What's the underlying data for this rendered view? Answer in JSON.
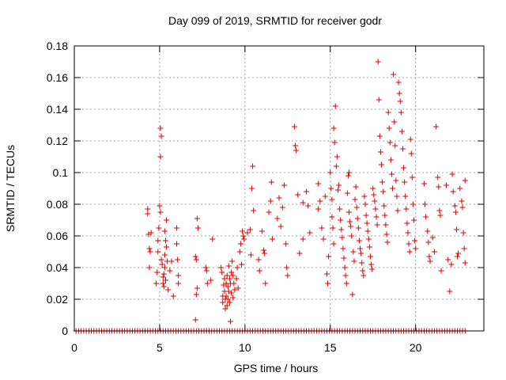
{
  "chart_data": {
    "type": "scatter",
    "title": "Day 099 of 2019, SRMTID for receiver godr",
    "xlabel": "GPS time / hours",
    "ylabel": "SRMTID / TECUs",
    "xlim": [
      0,
      24
    ],
    "ylim": [
      0,
      0.18
    ],
    "x_ticks": [
      0,
      5,
      10,
      15,
      20
    ],
    "x_tick_labels": [
      "0",
      "5",
      "10",
      "15",
      "20"
    ],
    "y_ticks": [
      0,
      0.02,
      0.04,
      0.06,
      0.08,
      0.1,
      0.12,
      0.14,
      0.16,
      0.18
    ],
    "y_tick_labels": [
      "0",
      "0.02",
      "0.04",
      "0.06",
      "0.08",
      "0.1",
      "0.12",
      "0.14",
      "0.16",
      "0.18"
    ],
    "grid": true,
    "marker": "+",
    "series": [
      {
        "name": "SRMTID",
        "color": "#dd0000",
        "points": [
          [
            4.3,
            0.077
          ],
          [
            4.3,
            0.074
          ],
          [
            4.35,
            0.061
          ],
          [
            4.4,
            0.052
          ],
          [
            4.45,
            0.05
          ],
          [
            4.4,
            0.04
          ],
          [
            4.5,
            0.062
          ],
          [
            4.8,
            0.03
          ],
          [
            4.85,
            0.037
          ],
          [
            4.9,
            0.05
          ],
          [
            4.9,
            0.057
          ],
          [
            4.95,
            0.065
          ],
          [
            5.0,
            0.079
          ],
          [
            5.05,
            0.075
          ],
          [
            5.05,
            0.128
          ],
          [
            5.1,
            0.123
          ],
          [
            5.05,
            0.11
          ],
          [
            5.1,
            0.045
          ],
          [
            5.15,
            0.042
          ],
          [
            5.2,
            0.034
          ],
          [
            5.2,
            0.03
          ],
          [
            5.25,
            0.036
          ],
          [
            5.3,
            0.04
          ],
          [
            5.3,
            0.048
          ],
          [
            5.35,
            0.057
          ],
          [
            5.3,
            0.063
          ],
          [
            5.4,
            0.07
          ],
          [
            5.4,
            0.053
          ],
          [
            5.45,
            0.044
          ],
          [
            5.35,
            0.032
          ],
          [
            5.25,
            0.028
          ],
          [
            5.5,
            0.026
          ],
          [
            5.6,
            0.038
          ],
          [
            5.7,
            0.044
          ],
          [
            5.8,
            0.022
          ],
          [
            6.0,
            0.065
          ],
          [
            6.0,
            0.055
          ],
          [
            6.05,
            0.045
          ],
          [
            6.1,
            0.035
          ],
          [
            6.1,
            0.03
          ],
          [
            7.2,
            0.071
          ],
          [
            7.25,
            0.065
          ],
          [
            7.1,
            0.047
          ],
          [
            7.15,
            0.045
          ],
          [
            7.2,
            0.027
          ],
          [
            7.15,
            0.023
          ],
          [
            7.1,
            0.007
          ],
          [
            7.7,
            0.04
          ],
          [
            7.75,
            0.038
          ],
          [
            7.8,
            0.03
          ],
          [
            8.1,
            0.058
          ],
          [
            8.0,
            0.032
          ],
          [
            8.6,
            0.04
          ],
          [
            8.65,
            0.037
          ],
          [
            8.7,
            0.022
          ],
          [
            8.7,
            0.018
          ],
          [
            8.75,
            0.029
          ],
          [
            8.8,
            0.033
          ],
          [
            8.8,
            0.025
          ],
          [
            8.85,
            0.02
          ],
          [
            8.85,
            0.014
          ],
          [
            8.9,
            0.03
          ],
          [
            8.9,
            0.022
          ],
          [
            8.95,
            0.016
          ],
          [
            8.95,
            0.035
          ],
          [
            9.0,
            0.028
          ],
          [
            9.0,
            0.02
          ],
          [
            9.05,
            0.025
          ],
          [
            9.05,
            0.041
          ],
          [
            9.1,
            0.033
          ],
          [
            9.1,
            0.018
          ],
          [
            9.15,
            0.006
          ],
          [
            9.15,
            0.03
          ],
          [
            9.2,
            0.024
          ],
          [
            9.2,
            0.037
          ],
          [
            9.25,
            0.044
          ],
          [
            9.3,
            0.035
          ],
          [
            9.3,
            0.021
          ],
          [
            9.35,
            0.03
          ],
          [
            9.4,
            0.026
          ],
          [
            9.55,
            0.04
          ],
          [
            9.5,
            0.033
          ],
          [
            9.6,
            0.027
          ],
          [
            9.7,
            0.05
          ],
          [
            9.75,
            0.055
          ],
          [
            9.8,
            0.042
          ],
          [
            9.85,
            0.063
          ],
          [
            9.9,
            0.06
          ],
          [
            9.95,
            0.058
          ],
          [
            10.15,
            0.062
          ],
          [
            10.3,
            0.064
          ],
          [
            10.4,
            0.09
          ],
          [
            10.45,
            0.104
          ],
          [
            10.5,
            0.076
          ],
          [
            10.35,
            0.048
          ],
          [
            10.8,
            0.045
          ],
          [
            10.85,
            0.038
          ],
          [
            11.0,
            0.063
          ],
          [
            11.1,
            0.051
          ],
          [
            11.15,
            0.049
          ],
          [
            11.2,
            0.03
          ],
          [
            11.4,
            0.075
          ],
          [
            11.5,
            0.082
          ],
          [
            11.55,
            0.094
          ],
          [
            11.6,
            0.058
          ],
          [
            11.9,
            0.071
          ],
          [
            12.0,
            0.084
          ],
          [
            12.1,
            0.066
          ],
          [
            12.2,
            0.078
          ],
          [
            12.3,
            0.092
          ],
          [
            12.4,
            0.055
          ],
          [
            12.45,
            0.04
          ],
          [
            12.5,
            0.035
          ],
          [
            12.9,
            0.129
          ],
          [
            12.95,
            0.117
          ],
          [
            13.0,
            0.114
          ],
          [
            13.1,
            0.086
          ],
          [
            13.4,
            0.058
          ],
          [
            13.2,
            0.049
          ],
          [
            13.4,
            0.081
          ],
          [
            13.6,
            0.088
          ],
          [
            13.7,
            0.079
          ],
          [
            13.8,
            0.062
          ],
          [
            14.3,
            0.093
          ],
          [
            14.3,
            0.077
          ],
          [
            14.4,
            0.082
          ],
          [
            14.5,
            0.065
          ],
          [
            14.6,
            0.058
          ],
          [
            14.7,
            0.085
          ],
          [
            14.8,
            0.036
          ],
          [
            14.85,
            0.03
          ],
          [
            14.9,
            0.047
          ],
          [
            15.0,
            0.1
          ],
          [
            15.05,
            0.09
          ],
          [
            15.1,
            0.083
          ],
          [
            15.1,
            0.072
          ],
          [
            15.15,
            0.065
          ],
          [
            15.2,
            0.055
          ],
          [
            15.2,
            0.128
          ],
          [
            15.25,
            0.119
          ],
          [
            15.3,
            0.142
          ],
          [
            15.35,
            0.104
          ],
          [
            15.4,
            0.11
          ],
          [
            15.45,
            0.089
          ],
          [
            15.5,
            0.092
          ],
          [
            15.55,
            0.077
          ],
          [
            15.6,
            0.07
          ],
          [
            15.65,
            0.064
          ],
          [
            15.7,
            0.059
          ],
          [
            15.75,
            0.052
          ],
          [
            15.8,
            0.046
          ],
          [
            15.85,
            0.04
          ],
          [
            15.9,
            0.035
          ],
          [
            15.95,
            0.03
          ],
          [
            16.0,
            0.087
          ],
          [
            16.05,
            0.098
          ],
          [
            16.1,
            0.1
          ],
          [
            16.1,
            0.075
          ],
          [
            16.15,
            0.069
          ],
          [
            16.2,
            0.066
          ],
          [
            16.25,
            0.06
          ],
          [
            16.3,
            0.023
          ],
          [
            16.35,
            0.05
          ],
          [
            16.4,
            0.044
          ],
          [
            16.45,
            0.083
          ],
          [
            16.5,
            0.091
          ],
          [
            16.55,
            0.078
          ],
          [
            16.6,
            0.071
          ],
          [
            16.65,
            0.065
          ],
          [
            16.7,
            0.057
          ],
          [
            16.75,
            0.052
          ],
          [
            16.8,
            0.049
          ],
          [
            16.85,
            0.043
          ],
          [
            16.9,
            0.038
          ],
          [
            16.95,
            0.035
          ],
          [
            17.0,
            0.085
          ],
          [
            17.05,
            0.08
          ],
          [
            17.1,
            0.073
          ],
          [
            17.15,
            0.068
          ],
          [
            17.2,
            0.063
          ],
          [
            17.25,
            0.058
          ],
          [
            17.3,
            0.053
          ],
          [
            17.35,
            0.047
          ],
          [
            17.4,
            0.042
          ],
          [
            17.45,
            0.039
          ],
          [
            17.5,
            0.09
          ],
          [
            17.55,
            0.086
          ],
          [
            17.6,
            0.082
          ],
          [
            17.65,
            0.077
          ],
          [
            17.7,
            0.072
          ],
          [
            17.75,
            0.067
          ],
          [
            17.8,
            0.17
          ],
          [
            17.85,
            0.146
          ],
          [
            17.9,
            0.123
          ],
          [
            17.95,
            0.113
          ],
          [
            18.0,
            0.105
          ],
          [
            18.05,
            0.094
          ],
          [
            18.1,
            0.088
          ],
          [
            18.15,
            0.079
          ],
          [
            18.2,
            0.073
          ],
          [
            18.25,
            0.067
          ],
          [
            18.3,
            0.061
          ],
          [
            18.35,
            0.056
          ],
          [
            18.4,
            0.138
          ],
          [
            18.45,
            0.128
          ],
          [
            18.5,
            0.119
          ],
          [
            18.55,
            0.108
          ],
          [
            18.6,
            0.099
          ],
          [
            18.65,
            0.09
          ],
          [
            18.7,
            0.162
          ],
          [
            18.75,
            0.132
          ],
          [
            18.8,
            0.117
          ],
          [
            18.85,
            0.095
          ],
          [
            18.9,
            0.085
          ],
          [
            18.95,
            0.076
          ],
          [
            19.0,
            0.157
          ],
          [
            19.05,
            0.15
          ],
          [
            19.1,
            0.145
          ],
          [
            19.15,
            0.138
          ],
          [
            19.2,
            0.126
          ],
          [
            19.25,
            0.115
          ],
          [
            19.3,
            0.103
          ],
          [
            19.35,
            0.094
          ],
          [
            19.4,
            0.085
          ],
          [
            19.45,
            0.077
          ],
          [
            19.5,
            0.068
          ],
          [
            19.55,
            0.062
          ],
          [
            19.6,
            0.055
          ],
          [
            19.65,
            0.05
          ],
          [
            19.7,
            0.121
          ],
          [
            19.75,
            0.112
          ],
          [
            19.8,
            0.097
          ],
          [
            19.85,
            0.08
          ],
          [
            19.9,
            0.07
          ],
          [
            19.95,
            0.057
          ],
          [
            20.0,
            0.052
          ],
          [
            20.5,
            0.093
          ],
          [
            20.55,
            0.08
          ],
          [
            20.6,
            0.072
          ],
          [
            20.7,
            0.063
          ],
          [
            20.75,
            0.056
          ],
          [
            20.8,
            0.047
          ],
          [
            20.85,
            0.044
          ],
          [
            21.0,
            0.059
          ],
          [
            21.1,
            0.05
          ],
          [
            21.2,
            0.129
          ],
          [
            21.3,
            0.097
          ],
          [
            21.35,
            0.091
          ],
          [
            21.4,
            0.076
          ],
          [
            21.45,
            0.073
          ],
          [
            21.5,
            0.038
          ],
          [
            21.8,
            0.092
          ],
          [
            21.9,
            0.045
          ],
          [
            22.0,
            0.025
          ],
          [
            22.1,
            0.042
          ],
          [
            22.15,
            0.099
          ],
          [
            22.2,
            0.088
          ],
          [
            22.3,
            0.079
          ],
          [
            22.35,
            0.075
          ],
          [
            22.4,
            0.064
          ],
          [
            22.45,
            0.047
          ],
          [
            22.5,
            0.049
          ],
          [
            22.6,
            0.09
          ],
          [
            22.7,
            0.082
          ],
          [
            22.75,
            0.078
          ],
          [
            22.8,
            0.062
          ],
          [
            22.85,
            0.052
          ],
          [
            22.9,
            0.043
          ],
          [
            22.9,
            0.095
          ]
        ],
        "zero_times": [
          0.1,
          0.25,
          0.4,
          0.55,
          0.7,
          0.85,
          1.0,
          1.15,
          1.3,
          1.45,
          1.6,
          1.75,
          1.9,
          2.05,
          2.2,
          2.35,
          2.5,
          2.65,
          2.8,
          2.95,
          3.1,
          3.25,
          3.4,
          3.55,
          3.7,
          3.85,
          4.0,
          4.15,
          4.3,
          4.45,
          4.6,
          4.75,
          4.9,
          5.05,
          5.2,
          5.35,
          5.5,
          5.65,
          5.8,
          5.95,
          6.1,
          6.25,
          6.4,
          6.55,
          6.7,
          6.85,
          7.0,
          7.15,
          7.3,
          7.45,
          7.6,
          7.75,
          7.9,
          8.05,
          8.2,
          8.35,
          8.5,
          8.65,
          8.8,
          8.95,
          9.1,
          9.25,
          9.4,
          9.55,
          9.7,
          9.85,
          10.0,
          10.15,
          10.3,
          10.45,
          10.6,
          10.75,
          10.9,
          11.05,
          11.2,
          11.35,
          11.5,
          11.65,
          11.8,
          11.95,
          12.1,
          12.25,
          12.4,
          12.55,
          12.7,
          12.85,
          13.0,
          13.15,
          13.3,
          13.45,
          13.6,
          13.75,
          13.9,
          14.05,
          14.2,
          14.35,
          14.5,
          14.65,
          14.8,
          14.95,
          15.1,
          15.25,
          15.4,
          15.55,
          15.7,
          15.85,
          16.0,
          16.15,
          16.3,
          16.45,
          16.6,
          16.75,
          16.9,
          17.05,
          17.2,
          17.35,
          17.5,
          17.65,
          17.8,
          17.95,
          18.1,
          18.25,
          18.4,
          18.55,
          18.7,
          18.85,
          19.0,
          19.15,
          19.3,
          19.45,
          19.6,
          19.75,
          19.9,
          20.05,
          20.2,
          20.35,
          20.5,
          20.65,
          20.8,
          20.95,
          21.1,
          21.25,
          21.4,
          21.55,
          21.7,
          21.85,
          22.0,
          22.15,
          22.3,
          22.45,
          22.6,
          22.75,
          22.9
        ]
      }
    ]
  }
}
